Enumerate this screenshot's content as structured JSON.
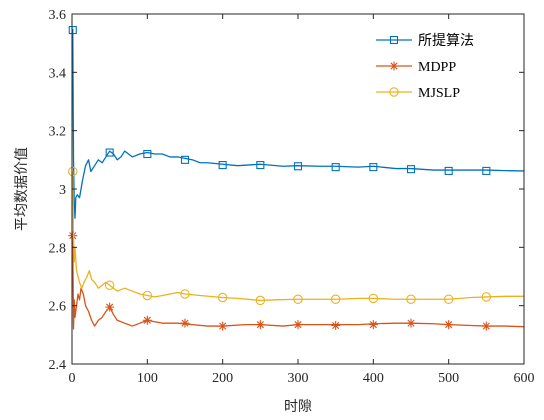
{
  "chart_data": {
    "type": "line",
    "xlabel": "时隙",
    "ylabel": "平均数据价值",
    "xlim": [
      0,
      600
    ],
    "ylim": [
      2.4,
      3.6
    ],
    "xticks": [
      0,
      100,
      200,
      300,
      400,
      500,
      600
    ],
    "yticks": [
      2.4,
      2.6,
      2.8,
      3.0,
      3.2,
      3.4,
      3.6
    ],
    "ytick_labels": [
      "2.4",
      "2.6",
      "2.8",
      "3",
      "3.2",
      "3.4",
      "3.6"
    ],
    "grid": false,
    "legend_position": "top-right",
    "series": [
      {
        "name": "所提算法",
        "color": "#0072BD",
        "marker": "square",
        "points": [
          [
            1,
            3.55
          ],
          [
            2,
            3.1
          ],
          [
            3,
            2.95
          ],
          [
            4,
            2.9
          ],
          [
            5,
            2.97
          ],
          [
            7,
            2.98
          ],
          [
            10,
            2.97
          ],
          [
            14,
            3.03
          ],
          [
            18,
            3.08
          ],
          [
            22,
            3.1
          ],
          [
            25,
            3.06
          ],
          [
            30,
            3.08
          ],
          [
            35,
            3.1
          ],
          [
            40,
            3.09
          ],
          [
            45,
            3.11
          ],
          [
            50,
            3.13
          ],
          [
            55,
            3.12
          ],
          [
            60,
            3.1
          ],
          [
            65,
            3.11
          ],
          [
            70,
            3.13
          ],
          [
            75,
            3.12
          ],
          [
            80,
            3.11
          ],
          [
            90,
            3.12
          ],
          [
            100,
            3.125
          ],
          [
            110,
            3.12
          ],
          [
            120,
            3.12
          ],
          [
            130,
            3.11
          ],
          [
            140,
            3.11
          ],
          [
            150,
            3.105
          ],
          [
            160,
            3.1
          ],
          [
            170,
            3.09
          ],
          [
            180,
            3.09
          ],
          [
            200,
            3.085
          ],
          [
            220,
            3.08
          ],
          [
            250,
            3.085
          ],
          [
            280,
            3.078
          ],
          [
            300,
            3.08
          ],
          [
            330,
            3.078
          ],
          [
            350,
            3.078
          ],
          [
            380,
            3.075
          ],
          [
            400,
            3.078
          ],
          [
            430,
            3.07
          ],
          [
            450,
            3.07
          ],
          [
            480,
            3.065
          ],
          [
            500,
            3.065
          ],
          [
            530,
            3.065
          ],
          [
            550,
            3.065
          ],
          [
            575,
            3.063
          ],
          [
            600,
            3.062
          ]
        ],
        "markers": [
          [
            1,
            3.545
          ],
          [
            50,
            3.125
          ],
          [
            100,
            3.12
          ],
          [
            150,
            3.1
          ],
          [
            200,
            3.082
          ],
          [
            250,
            3.082
          ],
          [
            300,
            3.078
          ],
          [
            350,
            3.075
          ],
          [
            400,
            3.075
          ],
          [
            450,
            3.068
          ],
          [
            500,
            3.062
          ],
          [
            550,
            3.062
          ]
        ]
      },
      {
        "name": "MDPP",
        "color": "#D95319",
        "marker": "star",
        "points": [
          [
            1,
            2.84
          ],
          [
            2,
            2.52
          ],
          [
            3,
            2.62
          ],
          [
            4,
            2.56
          ],
          [
            6,
            2.6
          ],
          [
            8,
            2.64
          ],
          [
            10,
            2.62
          ],
          [
            12,
            2.66
          ],
          [
            15,
            2.64
          ],
          [
            18,
            2.6
          ],
          [
            22,
            2.58
          ],
          [
            26,
            2.55
          ],
          [
            30,
            2.53
          ],
          [
            35,
            2.55
          ],
          [
            40,
            2.56
          ],
          [
            45,
            2.58
          ],
          [
            50,
            2.595
          ],
          [
            55,
            2.57
          ],
          [
            60,
            2.55
          ],
          [
            70,
            2.54
          ],
          [
            80,
            2.53
          ],
          [
            90,
            2.54
          ],
          [
            100,
            2.55
          ],
          [
            110,
            2.545
          ],
          [
            120,
            2.54
          ],
          [
            140,
            2.54
          ],
          [
            160,
            2.535
          ],
          [
            180,
            2.53
          ],
          [
            200,
            2.53
          ],
          [
            230,
            2.535
          ],
          [
            250,
            2.535
          ],
          [
            280,
            2.53
          ],
          [
            300,
            2.535
          ],
          [
            330,
            2.535
          ],
          [
            350,
            2.535
          ],
          [
            380,
            2.535
          ],
          [
            400,
            2.538
          ],
          [
            430,
            2.54
          ],
          [
            450,
            2.54
          ],
          [
            480,
            2.538
          ],
          [
            500,
            2.535
          ],
          [
            530,
            2.532
          ],
          [
            550,
            2.53
          ],
          [
            575,
            2.53
          ],
          [
            600,
            2.528
          ]
        ],
        "markers": [
          [
            1,
            2.84
          ],
          [
            50,
            2.595
          ],
          [
            100,
            2.55
          ],
          [
            150,
            2.54
          ],
          [
            200,
            2.53
          ],
          [
            250,
            2.535
          ],
          [
            300,
            2.535
          ],
          [
            350,
            2.532
          ],
          [
            400,
            2.535
          ],
          [
            450,
            2.54
          ],
          [
            500,
            2.535
          ],
          [
            550,
            2.53
          ]
        ]
      },
      {
        "name": "MJSLP",
        "color": "#EDB120",
        "marker": "circle",
        "points": [
          [
            1,
            3.06
          ],
          [
            2,
            2.83
          ],
          [
            3,
            2.75
          ],
          [
            4,
            2.8
          ],
          [
            6,
            2.72
          ],
          [
            8,
            2.7
          ],
          [
            10,
            2.68
          ],
          [
            13,
            2.66
          ],
          [
            16,
            2.68
          ],
          [
            20,
            2.7
          ],
          [
            23,
            2.72
          ],
          [
            26,
            2.69
          ],
          [
            30,
            2.68
          ],
          [
            35,
            2.66
          ],
          [
            40,
            2.67
          ],
          [
            45,
            2.68
          ],
          [
            50,
            2.67
          ],
          [
            55,
            2.66
          ],
          [
            60,
            2.65
          ],
          [
            70,
            2.66
          ],
          [
            80,
            2.65
          ],
          [
            90,
            2.64
          ],
          [
            100,
            2.635
          ],
          [
            110,
            2.63
          ],
          [
            120,
            2.635
          ],
          [
            130,
            2.64
          ],
          [
            140,
            2.645
          ],
          [
            150,
            2.64
          ],
          [
            170,
            2.635
          ],
          [
            200,
            2.628
          ],
          [
            220,
            2.625
          ],
          [
            250,
            2.618
          ],
          [
            270,
            2.62
          ],
          [
            300,
            2.622
          ],
          [
            330,
            2.622
          ],
          [
            350,
            2.622
          ],
          [
            380,
            2.625
          ],
          [
            400,
            2.625
          ],
          [
            430,
            2.622
          ],
          [
            450,
            2.622
          ],
          [
            480,
            2.622
          ],
          [
            500,
            2.622
          ],
          [
            530,
            2.628
          ],
          [
            550,
            2.63
          ],
          [
            575,
            2.632
          ],
          [
            600,
            2.632
          ]
        ],
        "markers": [
          [
            1,
            3.06
          ],
          [
            50,
            2.67
          ],
          [
            100,
            2.635
          ],
          [
            150,
            2.64
          ],
          [
            200,
            2.628
          ],
          [
            250,
            2.618
          ],
          [
            300,
            2.622
          ],
          [
            350,
            2.622
          ],
          [
            400,
            2.625
          ],
          [
            450,
            2.622
          ],
          [
            500,
            2.622
          ],
          [
            550,
            2.63
          ]
        ]
      }
    ]
  }
}
